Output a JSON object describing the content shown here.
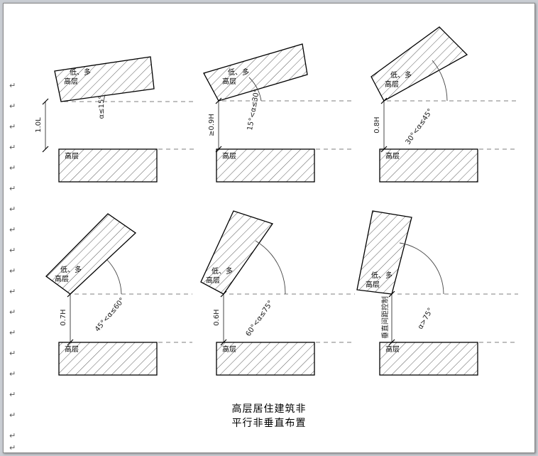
{
  "paragraph_mark": "↵",
  "caption": {
    "line1": "高层居住建筑非",
    "line2": "平行非垂直布置"
  },
  "panels": [
    {
      "bldg_label_1": "低、多",
      "bldg_label_2": "高层",
      "base_label": "高层",
      "spacing_label": "1.0L",
      "angle_label": "α≤15°"
    },
    {
      "bldg_label_1": "低、多",
      "bldg_label_2": "高层",
      "base_label": "高层",
      "spacing_label": "≥0.9H",
      "angle_label": "15°<α≤30°"
    },
    {
      "bldg_label_1": "低、多",
      "bldg_label_2": "高层",
      "base_label": "高层",
      "spacing_label": "0.8H",
      "angle_label": "30°<α≤45°"
    },
    {
      "bldg_label_1": "低、多",
      "bldg_label_2": "高层",
      "base_label": "高层",
      "spacing_label": "0.7H",
      "angle_label": "45°<α≤60°"
    },
    {
      "bldg_label_1": "低、多",
      "bldg_label_2": "高层",
      "base_label": "高层",
      "spacing_label": "0.6H",
      "angle_label": "60°<α≤75°"
    },
    {
      "bldg_label_1": "低、多",
      "bldg_label_2": "高层",
      "base_label": "高层",
      "spacing_label": "垂直间距控制",
      "angle_label": "α>75°"
    }
  ]
}
